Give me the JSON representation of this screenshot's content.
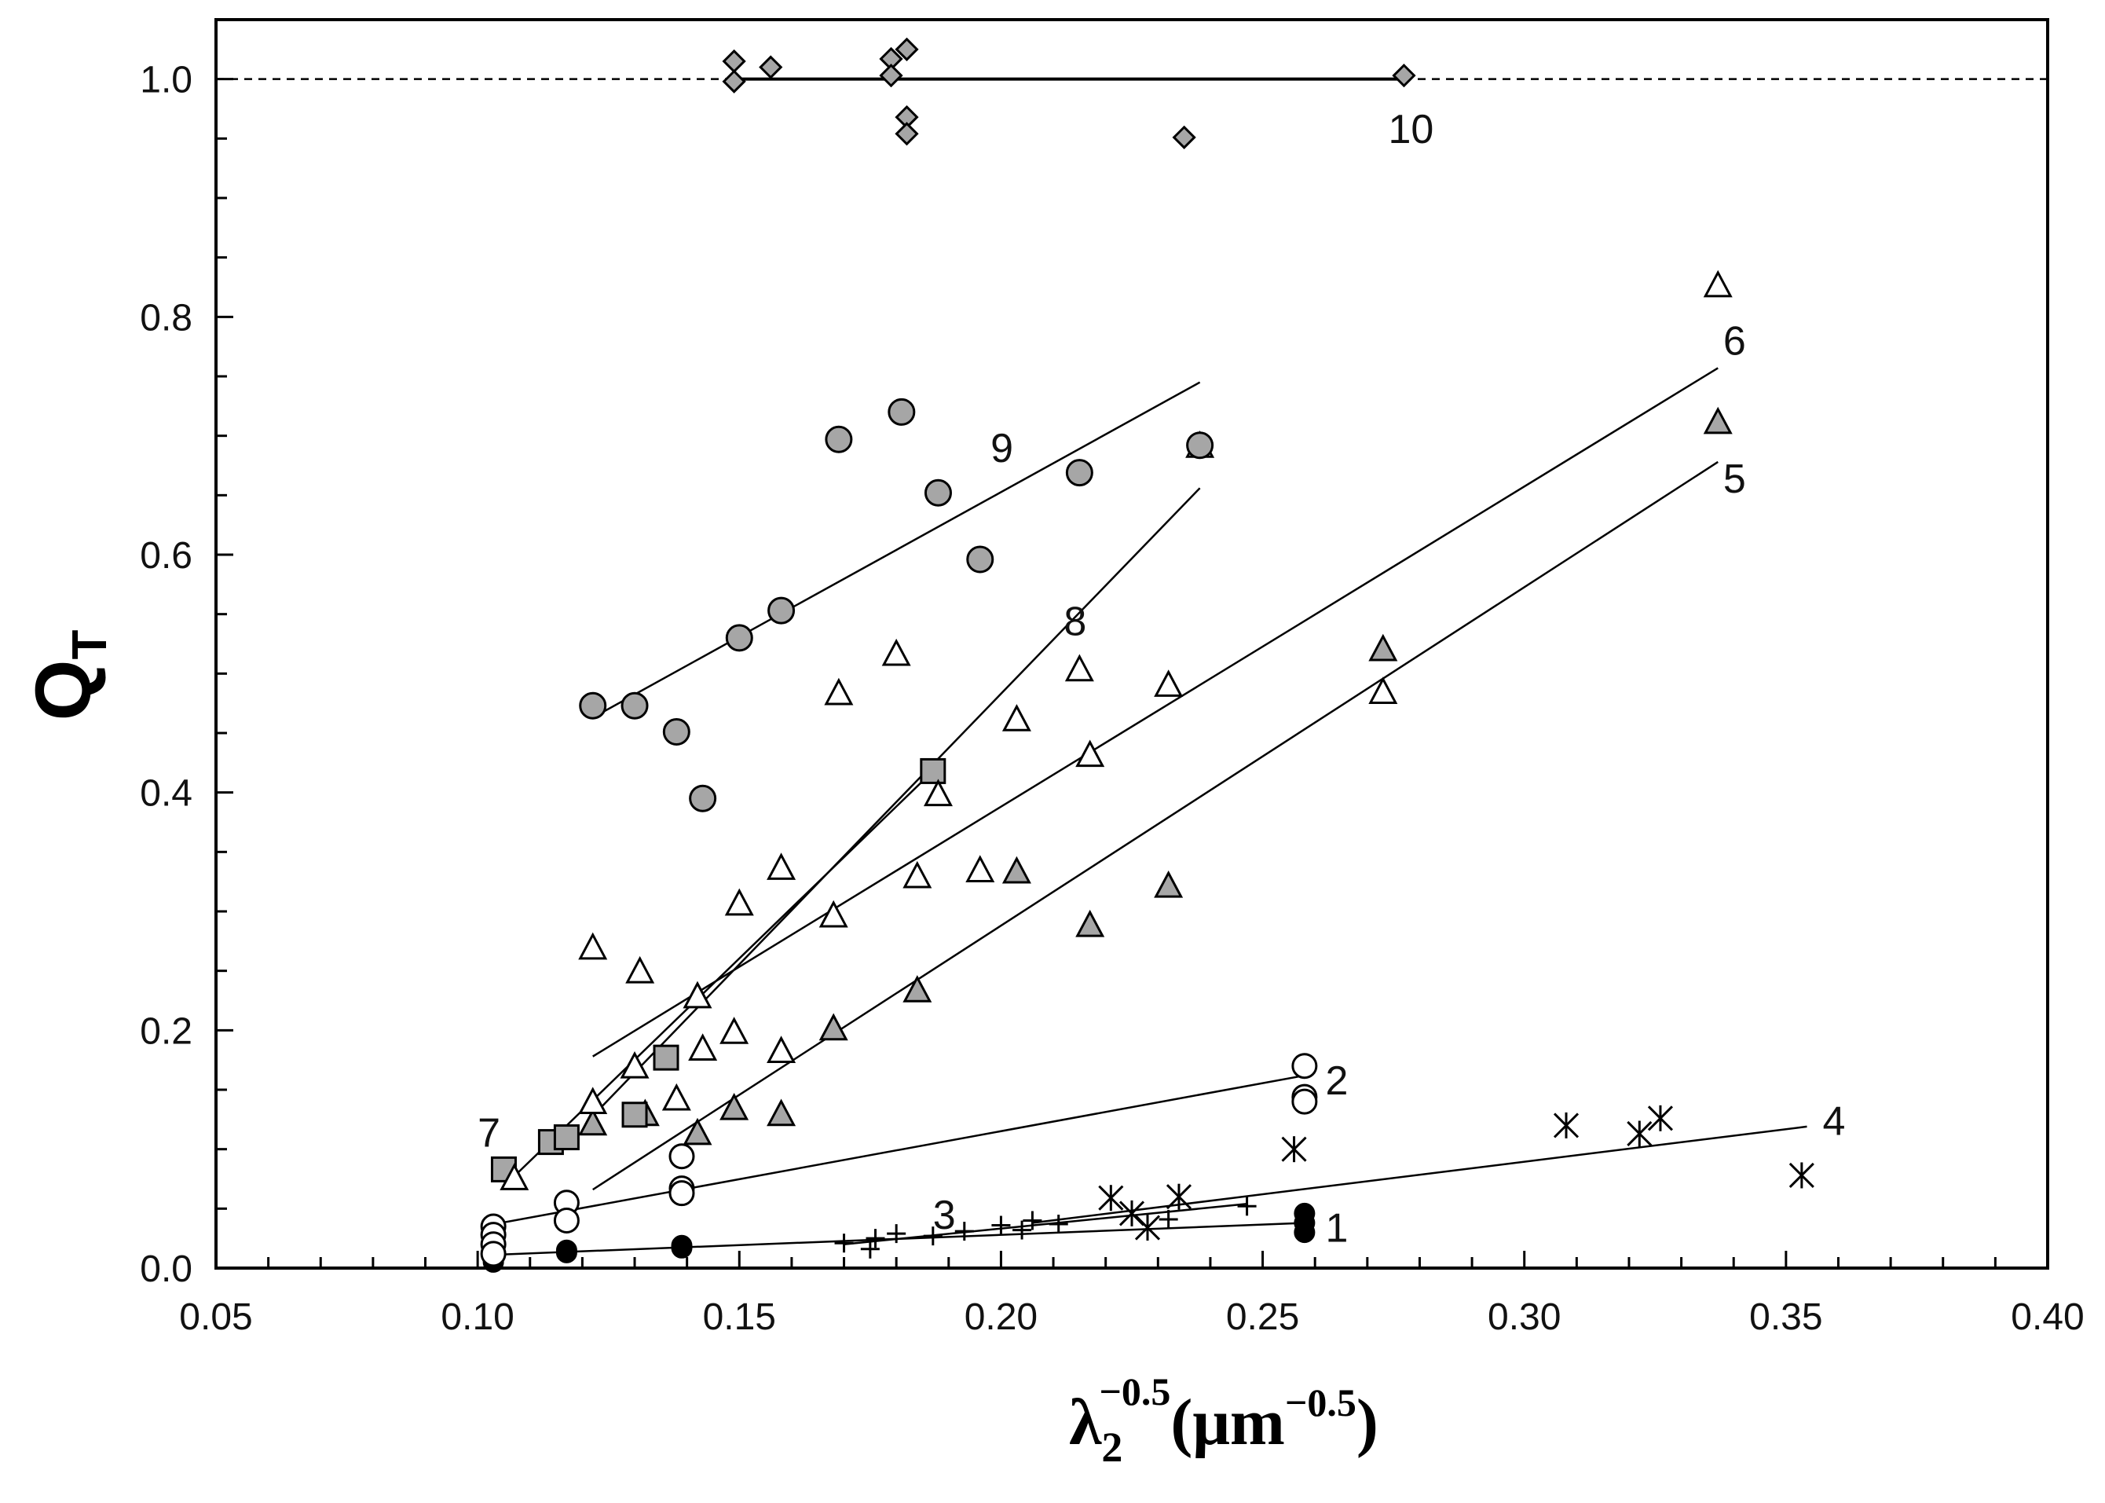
{
  "chart_data": {
    "type": "scatter",
    "title": "",
    "ylabel": {
      "main": "Q",
      "sub": "T"
    },
    "xlabel": {
      "lambda": "λ",
      "sub": "2",
      "sup": "−0.5",
      "rest": "(μm",
      "rest_sup": "−0.5",
      "close": ")"
    },
    "xlim": [
      0.05,
      0.4
    ],
    "ylim": [
      0,
      1.05
    ],
    "x_ticks": [
      0.05,
      0.1,
      0.15,
      0.2,
      0.25,
      0.3,
      0.35,
      0.4
    ],
    "x_tick_labels": [
      "0.05",
      "0.10",
      "0.15",
      "0.20",
      "0.25",
      "0.30",
      "0.35",
      "0.40"
    ],
    "y_ticks": [
      0,
      0.2,
      0.4,
      0.6,
      0.8,
      1.0
    ],
    "y_tick_labels": [
      "0.0",
      "0.2",
      "0.4",
      "0.6",
      "0.8",
      "1.0"
    ],
    "x_minor_step": 0.01,
    "y_minor_step": 0.05,
    "reference_line": {
      "y": 1.0,
      "style": "dashed"
    },
    "colors": {
      "gray_fill": "#a6a6a6",
      "black_fill": "#000000",
      "open_fill": "#ffffff",
      "stroke": "#000000"
    },
    "series": [
      {
        "name": "1",
        "marker": "circle-black",
        "points": [
          [
            0.103,
            0.005
          ],
          [
            0.103,
            0.01
          ],
          [
            0.117,
            0.013
          ],
          [
            0.117,
            0.015
          ],
          [
            0.139,
            0.017
          ],
          [
            0.139,
            0.019
          ],
          [
            0.258,
            0.03
          ],
          [
            0.258,
            0.038
          ],
          [
            0.258,
            0.046
          ]
        ],
        "fit": [
          [
            0.102,
            0.011
          ],
          [
            0.258,
            0.038
          ]
        ],
        "label": {
          "text": "1",
          "x": 0.262,
          "y": 0.034
        }
      },
      {
        "name": "2",
        "marker": "circle-open",
        "points": [
          [
            0.103,
            0.035
          ],
          [
            0.103,
            0.028
          ],
          [
            0.103,
            0.02
          ],
          [
            0.103,
            0.012
          ],
          [
            0.117,
            0.055
          ],
          [
            0.117,
            0.04
          ],
          [
            0.139,
            0.094
          ],
          [
            0.139,
            0.067
          ],
          [
            0.139,
            0.063
          ],
          [
            0.258,
            0.17
          ],
          [
            0.258,
            0.144
          ],
          [
            0.258,
            0.14
          ]
        ],
        "fit": [
          [
            0.102,
            0.036
          ],
          [
            0.258,
            0.162
          ]
        ],
        "label": {
          "text": "2",
          "x": 0.262,
          "y": 0.158
        }
      },
      {
        "name": "3",
        "marker": "plus",
        "points": [
          [
            0.17,
            0.021
          ],
          [
            0.175,
            0.016
          ],
          [
            0.176,
            0.025
          ],
          [
            0.18,
            0.029
          ],
          [
            0.187,
            0.027
          ],
          [
            0.193,
            0.031
          ],
          [
            0.2,
            0.036
          ],
          [
            0.204,
            0.032
          ],
          [
            0.206,
            0.04
          ],
          [
            0.211,
            0.037
          ],
          [
            0.232,
            0.041
          ],
          [
            0.247,
            0.052
          ]
        ],
        "fit": [
          [
            0.17,
            0.02
          ],
          [
            0.247,
            0.054
          ]
        ],
        "label": {
          "text": "3",
          "x": 0.187,
          "y": 0.045
        }
      },
      {
        "name": "4",
        "marker": "asterisk",
        "points": [
          [
            0.221,
            0.059
          ],
          [
            0.225,
            0.046
          ],
          [
            0.228,
            0.034
          ],
          [
            0.234,
            0.06
          ],
          [
            0.256,
            0.1
          ],
          [
            0.308,
            0.12
          ],
          [
            0.322,
            0.113
          ],
          [
            0.326,
            0.126
          ],
          [
            0.353,
            0.078
          ]
        ],
        "fit": [
          [
            0.206,
            0.038
          ],
          [
            0.354,
            0.119
          ]
        ],
        "label": {
          "text": "4",
          "x": 0.357,
          "y": 0.124
        }
      },
      {
        "name": "5",
        "marker": "triangle-gray",
        "points": [
          [
            0.122,
            0.12
          ],
          [
            0.132,
            0.128
          ],
          [
            0.142,
            0.112
          ],
          [
            0.149,
            0.133
          ],
          [
            0.158,
            0.128
          ],
          [
            0.168,
            0.2
          ],
          [
            0.184,
            0.232
          ],
          [
            0.203,
            0.332
          ],
          [
            0.217,
            0.287
          ],
          [
            0.232,
            0.32
          ],
          [
            0.273,
            0.519
          ],
          [
            0.337,
            0.71
          ]
        ],
        "fit": [
          [
            0.122,
            0.066
          ],
          [
            0.337,
            0.678
          ]
        ],
        "label": {
          "text": "5",
          "x": 0.338,
          "y": 0.664
        }
      },
      {
        "name": "6",
        "marker": "triangle-open",
        "points": [
          [
            0.122,
            0.268
          ],
          [
            0.131,
            0.248
          ],
          [
            0.142,
            0.227
          ],
          [
            0.143,
            0.183
          ],
          [
            0.149,
            0.197
          ],
          [
            0.15,
            0.305
          ],
          [
            0.158,
            0.335
          ],
          [
            0.158,
            0.181
          ],
          [
            0.168,
            0.295
          ],
          [
            0.169,
            0.482
          ],
          [
            0.18,
            0.515
          ],
          [
            0.184,
            0.328
          ],
          [
            0.196,
            0.333
          ],
          [
            0.203,
            0.46
          ],
          [
            0.215,
            0.502
          ],
          [
            0.217,
            0.43
          ],
          [
            0.232,
            0.489
          ],
          [
            0.273,
            0.483
          ],
          [
            0.337,
            0.825
          ]
        ],
        "fit": [
          [
            0.122,
            0.178
          ],
          [
            0.337,
            0.757
          ]
        ],
        "label": {
          "text": "6",
          "x": 0.338,
          "y": 0.78
        }
      },
      {
        "name": "7",
        "marker": "square-gray",
        "points": [
          [
            0.105,
            0.083
          ],
          [
            0.114,
            0.106
          ],
          [
            0.117,
            0.11
          ],
          [
            0.13,
            0.129
          ],
          [
            0.136,
            0.177
          ],
          [
            0.187,
            0.418
          ]
        ],
        "fit": [
          [
            0.106,
            0.073
          ],
          [
            0.187,
            0.418
          ]
        ],
        "label": {
          "text": "7",
          "x": 0.1,
          "y": 0.114
        }
      },
      {
        "name": "8",
        "marker": "triangle-open",
        "points": [
          [
            0.107,
            0.074
          ],
          [
            0.122,
            0.138
          ],
          [
            0.13,
            0.168
          ],
          [
            0.138,
            0.141
          ],
          [
            0.188,
            0.397
          ],
          [
            0.238,
            0.69
          ]
        ],
        "fit": [
          [
            0.122,
            0.128
          ],
          [
            0.238,
            0.656
          ]
        ],
        "label": {
          "text": "8",
          "x": 0.212,
          "y": 0.544
        }
      },
      {
        "name": "9",
        "marker": "circle-gray",
        "points": [
          [
            0.122,
            0.473
          ],
          [
            0.13,
            0.473
          ],
          [
            0.138,
            0.451
          ],
          [
            0.143,
            0.395
          ],
          [
            0.15,
            0.53
          ],
          [
            0.158,
            0.553
          ],
          [
            0.169,
            0.697
          ],
          [
            0.181,
            0.72
          ],
          [
            0.188,
            0.652
          ],
          [
            0.196,
            0.596
          ],
          [
            0.215,
            0.669
          ],
          [
            0.238,
            0.692
          ]
        ],
        "fit": [
          [
            0.122,
            0.463
          ],
          [
            0.238,
            0.745
          ]
        ],
        "label": {
          "text": "9",
          "x": 0.198,
          "y": 0.69
        }
      },
      {
        "name": "10",
        "marker": "diamond-gray",
        "points": [
          [
            0.149,
            1.015
          ],
          [
            0.149,
            0.998
          ],
          [
            0.156,
            1.01
          ],
          [
            0.179,
            1.017
          ],
          [
            0.179,
            1.003
          ],
          [
            0.182,
            1.025
          ],
          [
            0.182,
            0.968
          ],
          [
            0.182,
            0.954
          ],
          [
            0.235,
            0.951
          ],
          [
            0.277,
            1.003
          ]
        ],
        "fit": [
          [
            0.149,
            1.0
          ],
          [
            0.277,
            1.0
          ]
        ],
        "label": {
          "text": "10",
          "x": 0.274,
          "y": 0.958
        }
      }
    ]
  }
}
